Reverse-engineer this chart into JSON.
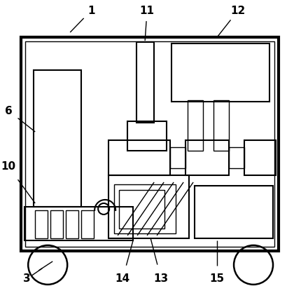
{
  "bg_color": "#ffffff",
  "line_color": "#000000",
  "fig_width": 4.3,
  "fig_height": 4.08,
  "dpi": 100
}
